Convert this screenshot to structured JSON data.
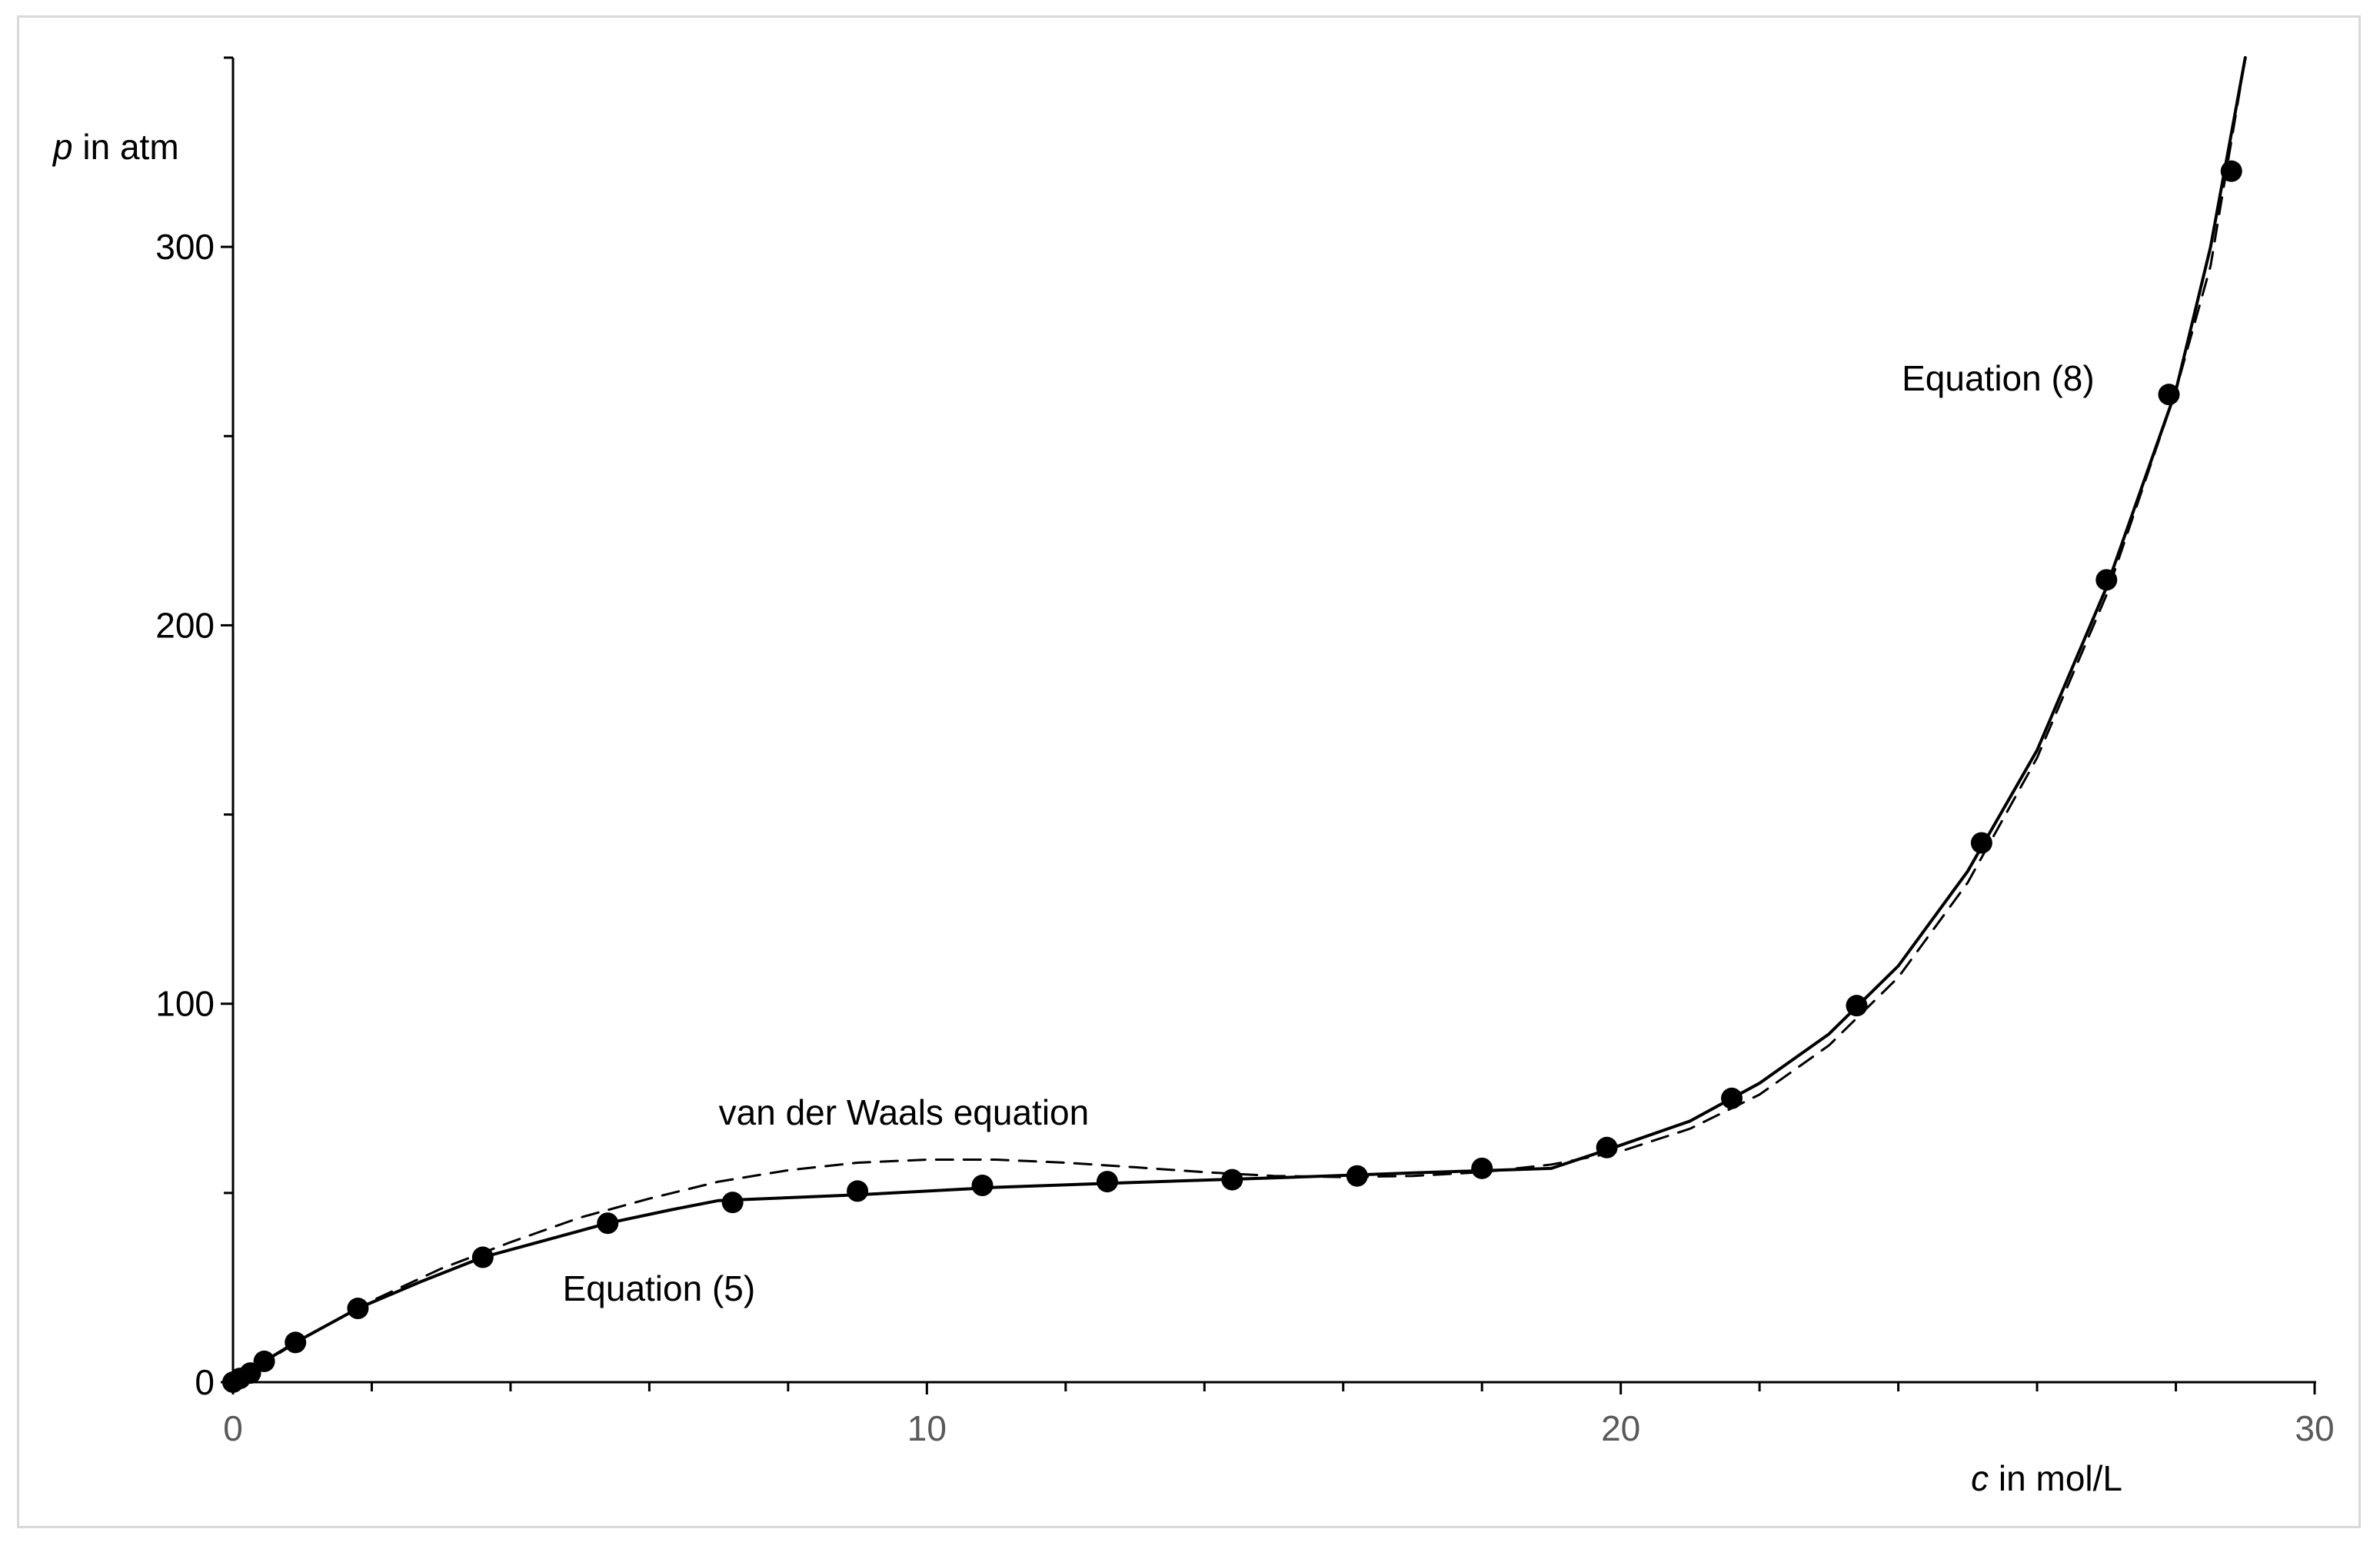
{
  "chart_data": {
    "type": "scatter",
    "xlabel": {
      "var": "c",
      "text": " in mol/L"
    },
    "ylabel": {
      "var": "p",
      "text": " in atm"
    },
    "xlim": [
      0,
      30
    ],
    "ylim": [
      0,
      350
    ],
    "x_ticks": [
      0,
      10,
      20,
      30
    ],
    "x_minor_step": 2,
    "y_ticks": [
      0,
      100,
      200,
      300
    ],
    "y_minor_step": 50,
    "grid": false,
    "colors": {
      "axis": "#000000",
      "marker": "#000000",
      "frame": "#d9d9d9"
    },
    "series": [
      {
        "style": "markers",
        "points": [
          [
            0.0,
            0.0
          ],
          [
            0.1,
            1.0
          ],
          [
            0.25,
            2.4
          ],
          [
            0.45,
            5.5
          ],
          [
            0.9,
            10.5
          ],
          [
            1.8,
            19.5
          ],
          [
            3.6,
            33.0
          ],
          [
            5.4,
            42.0
          ],
          [
            7.2,
            47.5
          ],
          [
            9.0,
            50.5
          ],
          [
            10.8,
            52.0
          ],
          [
            12.6,
            53.0
          ],
          [
            14.4,
            53.5
          ],
          [
            16.2,
            54.5
          ],
          [
            18.0,
            56.5
          ],
          [
            19.8,
            62.0
          ],
          [
            21.6,
            75.0
          ],
          [
            23.4,
            99.5
          ],
          [
            25.2,
            142.5
          ],
          [
            27.0,
            212.0
          ],
          [
            27.9,
            261.0
          ],
          [
            28.8,
            320.0
          ]
        ]
      },
      {
        "style": "solid",
        "points": [
          [
            0.0,
            0.0
          ],
          [
            0.45,
            5.5
          ],
          [
            0.9,
            10.5
          ],
          [
            1.8,
            19.5
          ],
          [
            2.7,
            26.5
          ],
          [
            3.6,
            33.0
          ],
          [
            4.5,
            37.5
          ],
          [
            5.4,
            42.0
          ],
          [
            6.3,
            45.5
          ],
          [
            7.0,
            48.0
          ],
          [
            9.0,
            49.5
          ],
          [
            11.0,
            51.5
          ],
          [
            13.0,
            52.8
          ],
          [
            15.0,
            54.0
          ],
          [
            17.0,
            55.3
          ],
          [
            19.0,
            56.5
          ],
          [
            19.9,
            62.0
          ],
          [
            21.0,
            69.0
          ],
          [
            22.0,
            79.0
          ],
          [
            23.0,
            92.0
          ],
          [
            24.0,
            110.0
          ],
          [
            25.0,
            135.0
          ],
          [
            26.0,
            167.0
          ],
          [
            27.0,
            210.0
          ],
          [
            28.0,
            262.0
          ],
          [
            28.5,
            300.0
          ],
          [
            29.0,
            350.0
          ]
        ]
      },
      {
        "style": "dashed",
        "points": [
          [
            0.0,
            0.0
          ],
          [
            1.0,
            11.5
          ],
          [
            2.0,
            21.5
          ],
          [
            3.0,
            30.0
          ],
          [
            4.0,
            37.0
          ],
          [
            5.0,
            43.5
          ],
          [
            6.0,
            48.5
          ],
          [
            7.0,
            53.0
          ],
          [
            8.0,
            56.0
          ],
          [
            9.0,
            58.0
          ],
          [
            10.0,
            58.8
          ],
          [
            11.0,
            58.8
          ],
          [
            12.0,
            58.0
          ],
          [
            13.0,
            56.8
          ],
          [
            14.0,
            55.5
          ],
          [
            15.0,
            54.5
          ],
          [
            16.0,
            54.2
          ],
          [
            17.0,
            54.5
          ],
          [
            18.0,
            55.5
          ],
          [
            19.0,
            57.5
          ],
          [
            20.0,
            61.0
          ],
          [
            21.0,
            67.0
          ],
          [
            22.0,
            76.0
          ],
          [
            23.0,
            89.0
          ],
          [
            24.0,
            107.0
          ],
          [
            25.0,
            132.0
          ],
          [
            26.0,
            165.0
          ],
          [
            27.0,
            208.0
          ],
          [
            28.0,
            262.0
          ],
          [
            28.5,
            295.0
          ],
          [
            29.0,
            350.0
          ]
        ]
      }
    ],
    "annotations": [
      {
        "text": "van der Waals equation",
        "x": 7.0,
        "y": 68.0
      },
      {
        "text": "Equation (5)",
        "x": 4.75,
        "y": 21.5
      },
      {
        "text": "Equation (8)",
        "x": 24.05,
        "y": 262.0
      }
    ]
  }
}
